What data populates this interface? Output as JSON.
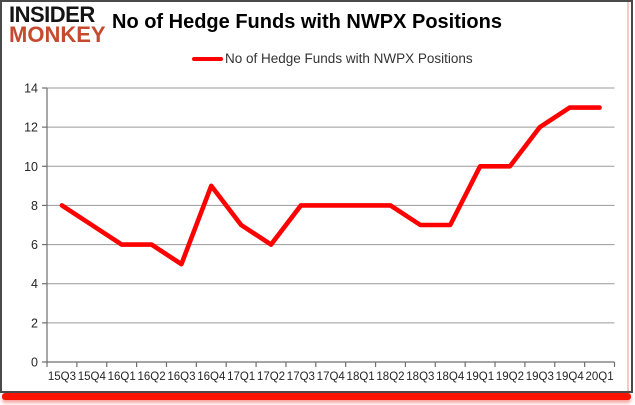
{
  "branding": {
    "logo_line1": "INSIDER",
    "logo_line2": "MONKEY",
    "logo_color2": "#c64a2e"
  },
  "header": {
    "title": "No of Hedge Funds with NWPX Positions"
  },
  "legend": {
    "label": "No of Hedge Funds with NWPX Positions",
    "line_color": "#ff0000"
  },
  "footer": {
    "red_bar_color": "#fa1400"
  },
  "chart_data": {
    "type": "line",
    "title": "No of Hedge Funds with NWPX Positions",
    "categories": [
      "15Q3",
      "15Q4",
      "16Q1",
      "16Q2",
      "16Q3",
      "16Q4",
      "17Q1",
      "17Q2",
      "17Q3",
      "17Q4",
      "18Q1",
      "18Q2",
      "18Q3",
      "18Q4",
      "19Q1",
      "19Q2",
      "19Q3",
      "19Q4",
      "20Q1"
    ],
    "series": [
      {
        "name": "No of Hedge Funds with NWPX Positions",
        "color": "#ff0000",
        "values": [
          8,
          7,
          6,
          6,
          5,
          9,
          7,
          6,
          8,
          8,
          8,
          8,
          7,
          7,
          10,
          10,
          12,
          13,
          13
        ]
      }
    ],
    "xlabel": "",
    "ylabel": "",
    "ylim": [
      0,
      14
    ],
    "yticks": [
      0,
      2,
      4,
      6,
      8,
      10,
      12,
      14
    ],
    "grid": "horizontal-only",
    "gridline_color": "#9a9a9a",
    "axis_color": "#6f6f6f",
    "legend_position": "top-center"
  }
}
